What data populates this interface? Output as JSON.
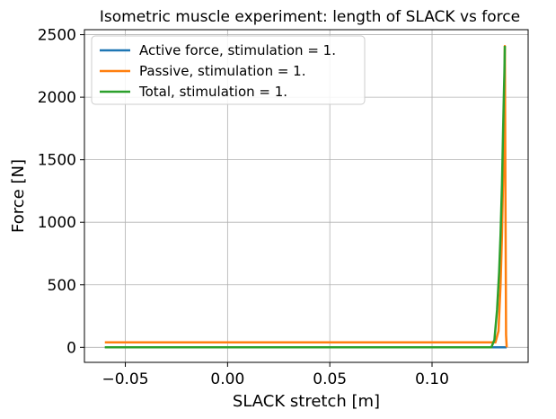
{
  "chart_data": {
    "type": "line",
    "title": "Isometric muscle experiment: length of SLACK vs force",
    "xlabel": "SLACK stretch [m]",
    "ylabel": "Force [N]",
    "xlim": [
      -0.07,
      0.147
    ],
    "ylim": [
      -120,
      2540
    ],
    "xticks": [
      -0.05,
      0.0,
      0.05,
      0.1
    ],
    "xtick_labels": [
      "−0.05",
      "0.00",
      "0.05",
      "0.10"
    ],
    "yticks": [
      0,
      500,
      1000,
      1500,
      2000,
      2500
    ],
    "ytick_labels": [
      "0",
      "500",
      "1000",
      "1500",
      "2000",
      "2500"
    ],
    "grid": true,
    "legend_position": "top-left",
    "series": [
      {
        "name": "Active force, stimulation = 1.",
        "color": "#1f77b4",
        "x": [
          -0.06,
          0.131,
          0.1325,
          0.1335,
          0.1342,
          0.1347,
          0.1351,
          0.1354,
          0.1356,
          0.1359,
          0.1362,
          0.1365
        ],
        "y": [
          0,
          0,
          0,
          0,
          0,
          0,
          0,
          0,
          0,
          0,
          0,
          0
        ]
      },
      {
        "name": "Passive, stimulation = 1.",
        "color": "#ff7f0e",
        "x": [
          -0.06,
          0.131,
          0.1325,
          0.1335,
          0.1342,
          0.1347,
          0.1351,
          0.1354,
          0.1356,
          0.1359,
          0.1362,
          0.1365
        ],
        "y": [
          40,
          40,
          130,
          500,
          900,
          1300,
          1700,
          2000,
          2410,
          1200,
          100,
          0
        ]
      },
      {
        "name": "Total, stimulation = 1.",
        "color": "#2ca02c",
        "x": [
          -0.06,
          0.129,
          0.1305,
          0.1318,
          0.1328,
          0.1335,
          0.1342,
          0.1347,
          0.1351,
          0.1354,
          0.1356
        ],
        "y": [
          0,
          0,
          60,
          300,
          600,
          900,
          1300,
          1700,
          2000,
          2200,
          2410
        ]
      }
    ]
  }
}
